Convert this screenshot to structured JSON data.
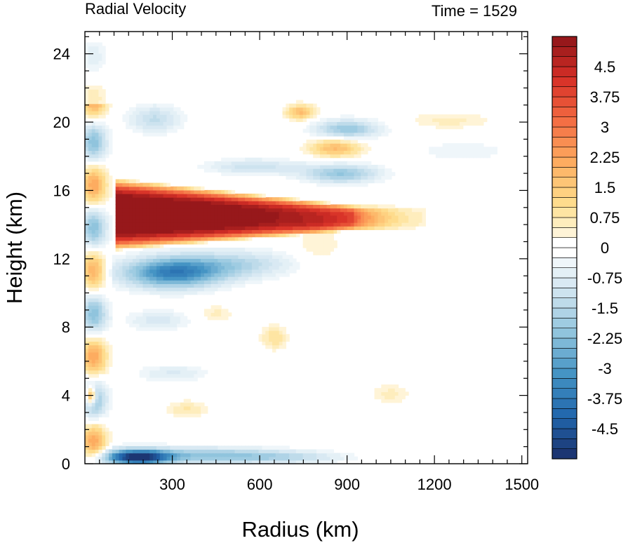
{
  "chart_data": {
    "type": "heatmap",
    "title_left": "Radial Velocity",
    "title_right": "Time = 1529",
    "xlabel": "Radius (km)",
    "ylabel": "Height (km)",
    "xlim": [
      0,
      1520
    ],
    "ylim": [
      0,
      25.3
    ],
    "x_ticks": [
      300,
      600,
      900,
      1200,
      1500
    ],
    "x_tick_labels": [
      "300",
      "600",
      "900",
      "1200",
      "1500"
    ],
    "y_ticks": [
      0,
      4,
      8,
      12,
      16,
      20,
      24
    ],
    "y_tick_labels": [
      "0",
      "4",
      "8",
      "12",
      "16",
      "20",
      "24"
    ],
    "colorbar": {
      "levels": [
        -5.25,
        -5.0,
        -4.75,
        -4.5,
        -4.25,
        -4.0,
        -3.75,
        -3.5,
        -3.25,
        -3.0,
        -2.75,
        -2.5,
        -2.25,
        -2.0,
        -1.75,
        -1.5,
        -1.25,
        -1.0,
        -0.75,
        -0.5,
        -0.25,
        0.0,
        0.25,
        0.5,
        0.75,
        1.0,
        1.25,
        1.5,
        1.75,
        2.0,
        2.25,
        2.5,
        2.75,
        3.0,
        3.25,
        3.5,
        3.75,
        4.0,
        4.25,
        4.5,
        4.75,
        5.0,
        5.25
      ],
      "labels": [
        "4.5",
        "3.75",
        "3",
        "2.25",
        "1.5",
        "0.75",
        "0",
        "-0.75",
        "-1.5",
        "-2.25",
        "-3",
        "-3.75",
        "-4.5"
      ],
      "label_values": [
        4.5,
        3.75,
        3.0,
        2.25,
        1.5,
        0.75,
        0.0,
        -0.75,
        -1.5,
        -2.25,
        -3.0,
        -3.75,
        -4.5
      ],
      "low_color": "#1b2f6b",
      "mid_color": "#ffffff",
      "high_color": "#8e1519"
    },
    "features": [
      {
        "kind": "outflow",
        "x_start": 100,
        "x_end": 920,
        "z_center": 14.6,
        "z_half_width_inner": 1.8,
        "z_half_width_outer": 0.4,
        "value": 6.0
      },
      {
        "kind": "inflow",
        "x": 300,
        "z": 11.2,
        "value": -3.5
      },
      {
        "kind": "inflow",
        "x": 180,
        "z": 0.4,
        "value": -5.0
      },
      {
        "kind": "inflow",
        "x": 900,
        "z": 19.6,
        "value": -2.0
      },
      {
        "kind": "outflow",
        "x": 860,
        "z": 18.5,
        "value": 1.8
      },
      {
        "kind": "inflow",
        "x": 880,
        "z": 17.0,
        "value": -2.0
      },
      {
        "kind": "outflow",
        "x": 740,
        "z": 20.6,
        "value": 1.8
      },
      {
        "kind": "outflow",
        "x": 20,
        "z": 4.0,
        "value": 3.5
      },
      {
        "kind": "outflow",
        "x": 650,
        "z": 7.4,
        "value": 1.0
      },
      {
        "kind": "outflow",
        "x": 1050,
        "z": 4.1,
        "value": 0.6
      },
      {
        "kind": "outflow",
        "x": 1250,
        "z": 20.1,
        "value": 0.6
      }
    ]
  }
}
